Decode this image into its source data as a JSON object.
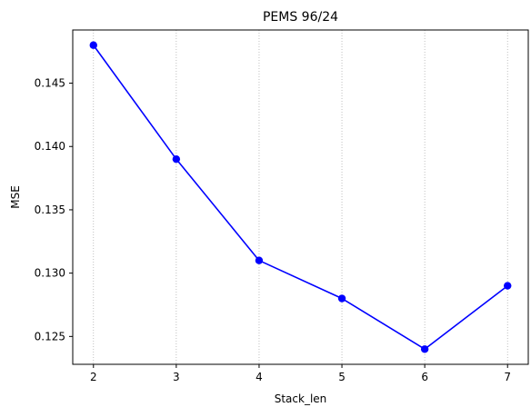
{
  "chart_data": {
    "type": "line",
    "title": "PEMS 96/24",
    "xlabel": "Stack_len",
    "ylabel": "MSE",
    "x": [
      2,
      3,
      4,
      5,
      6,
      7
    ],
    "series": [
      {
        "values": [
          0.148,
          0.139,
          0.131,
          0.128,
          0.124,
          0.129
        ],
        "color": "#0000ff",
        "marker": "circle"
      }
    ],
    "xlim": [
      1.75,
      7.25
    ],
    "ylim": [
      0.1228,
      0.1492
    ],
    "xticks": [
      2,
      3,
      4,
      5,
      6,
      7
    ],
    "xtick_labels": [
      "2",
      "3",
      "4",
      "5",
      "6",
      "7"
    ],
    "yticks": [
      0.125,
      0.13,
      0.135,
      0.14,
      0.145
    ],
    "ytick_labels": [
      "0.125",
      "0.130",
      "0.135",
      "0.140",
      "0.145"
    ],
    "grid": "x-axis dotted",
    "grid_color": "#b0b0b0"
  }
}
